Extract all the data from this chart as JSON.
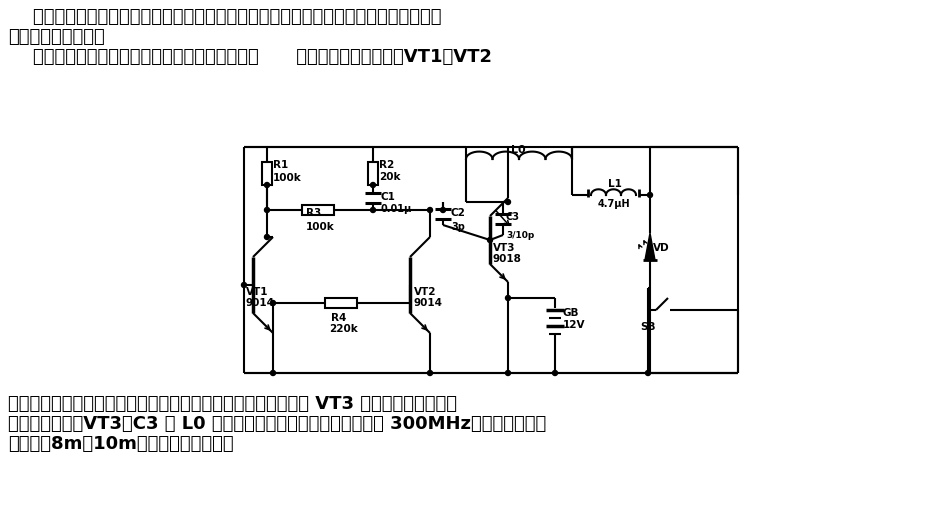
{
  "bg": "#ffffff",
  "lc": "black",
  "lw": 1.5,
  "top1": "    该两用调光器可对目前使用的各类灯具配套、改造使用。整个电路简单可靠，适合广大",
  "top2": "无线电爱好者制作。",
  "top3": "    这套调光器由两部分组成：发射机和接收机。图      是发射机电路原理图。VT1、VT2",
  "bot1": "等组成多谐振荡电路，成为发射机的调制电路，调制信号控制由 VT3 及外部元件组成的射",
  "bot2": "频电路的工作。VT3、C3 及 L0 等组成射频振荡电路，振荡频率约为 300MHz。发射机有效作",
  "bot3": "用距离为8m～10m，可满足家庭需要。",
  "CL": 244,
  "CR": 738,
  "CT": 381,
  "CB": 155
}
